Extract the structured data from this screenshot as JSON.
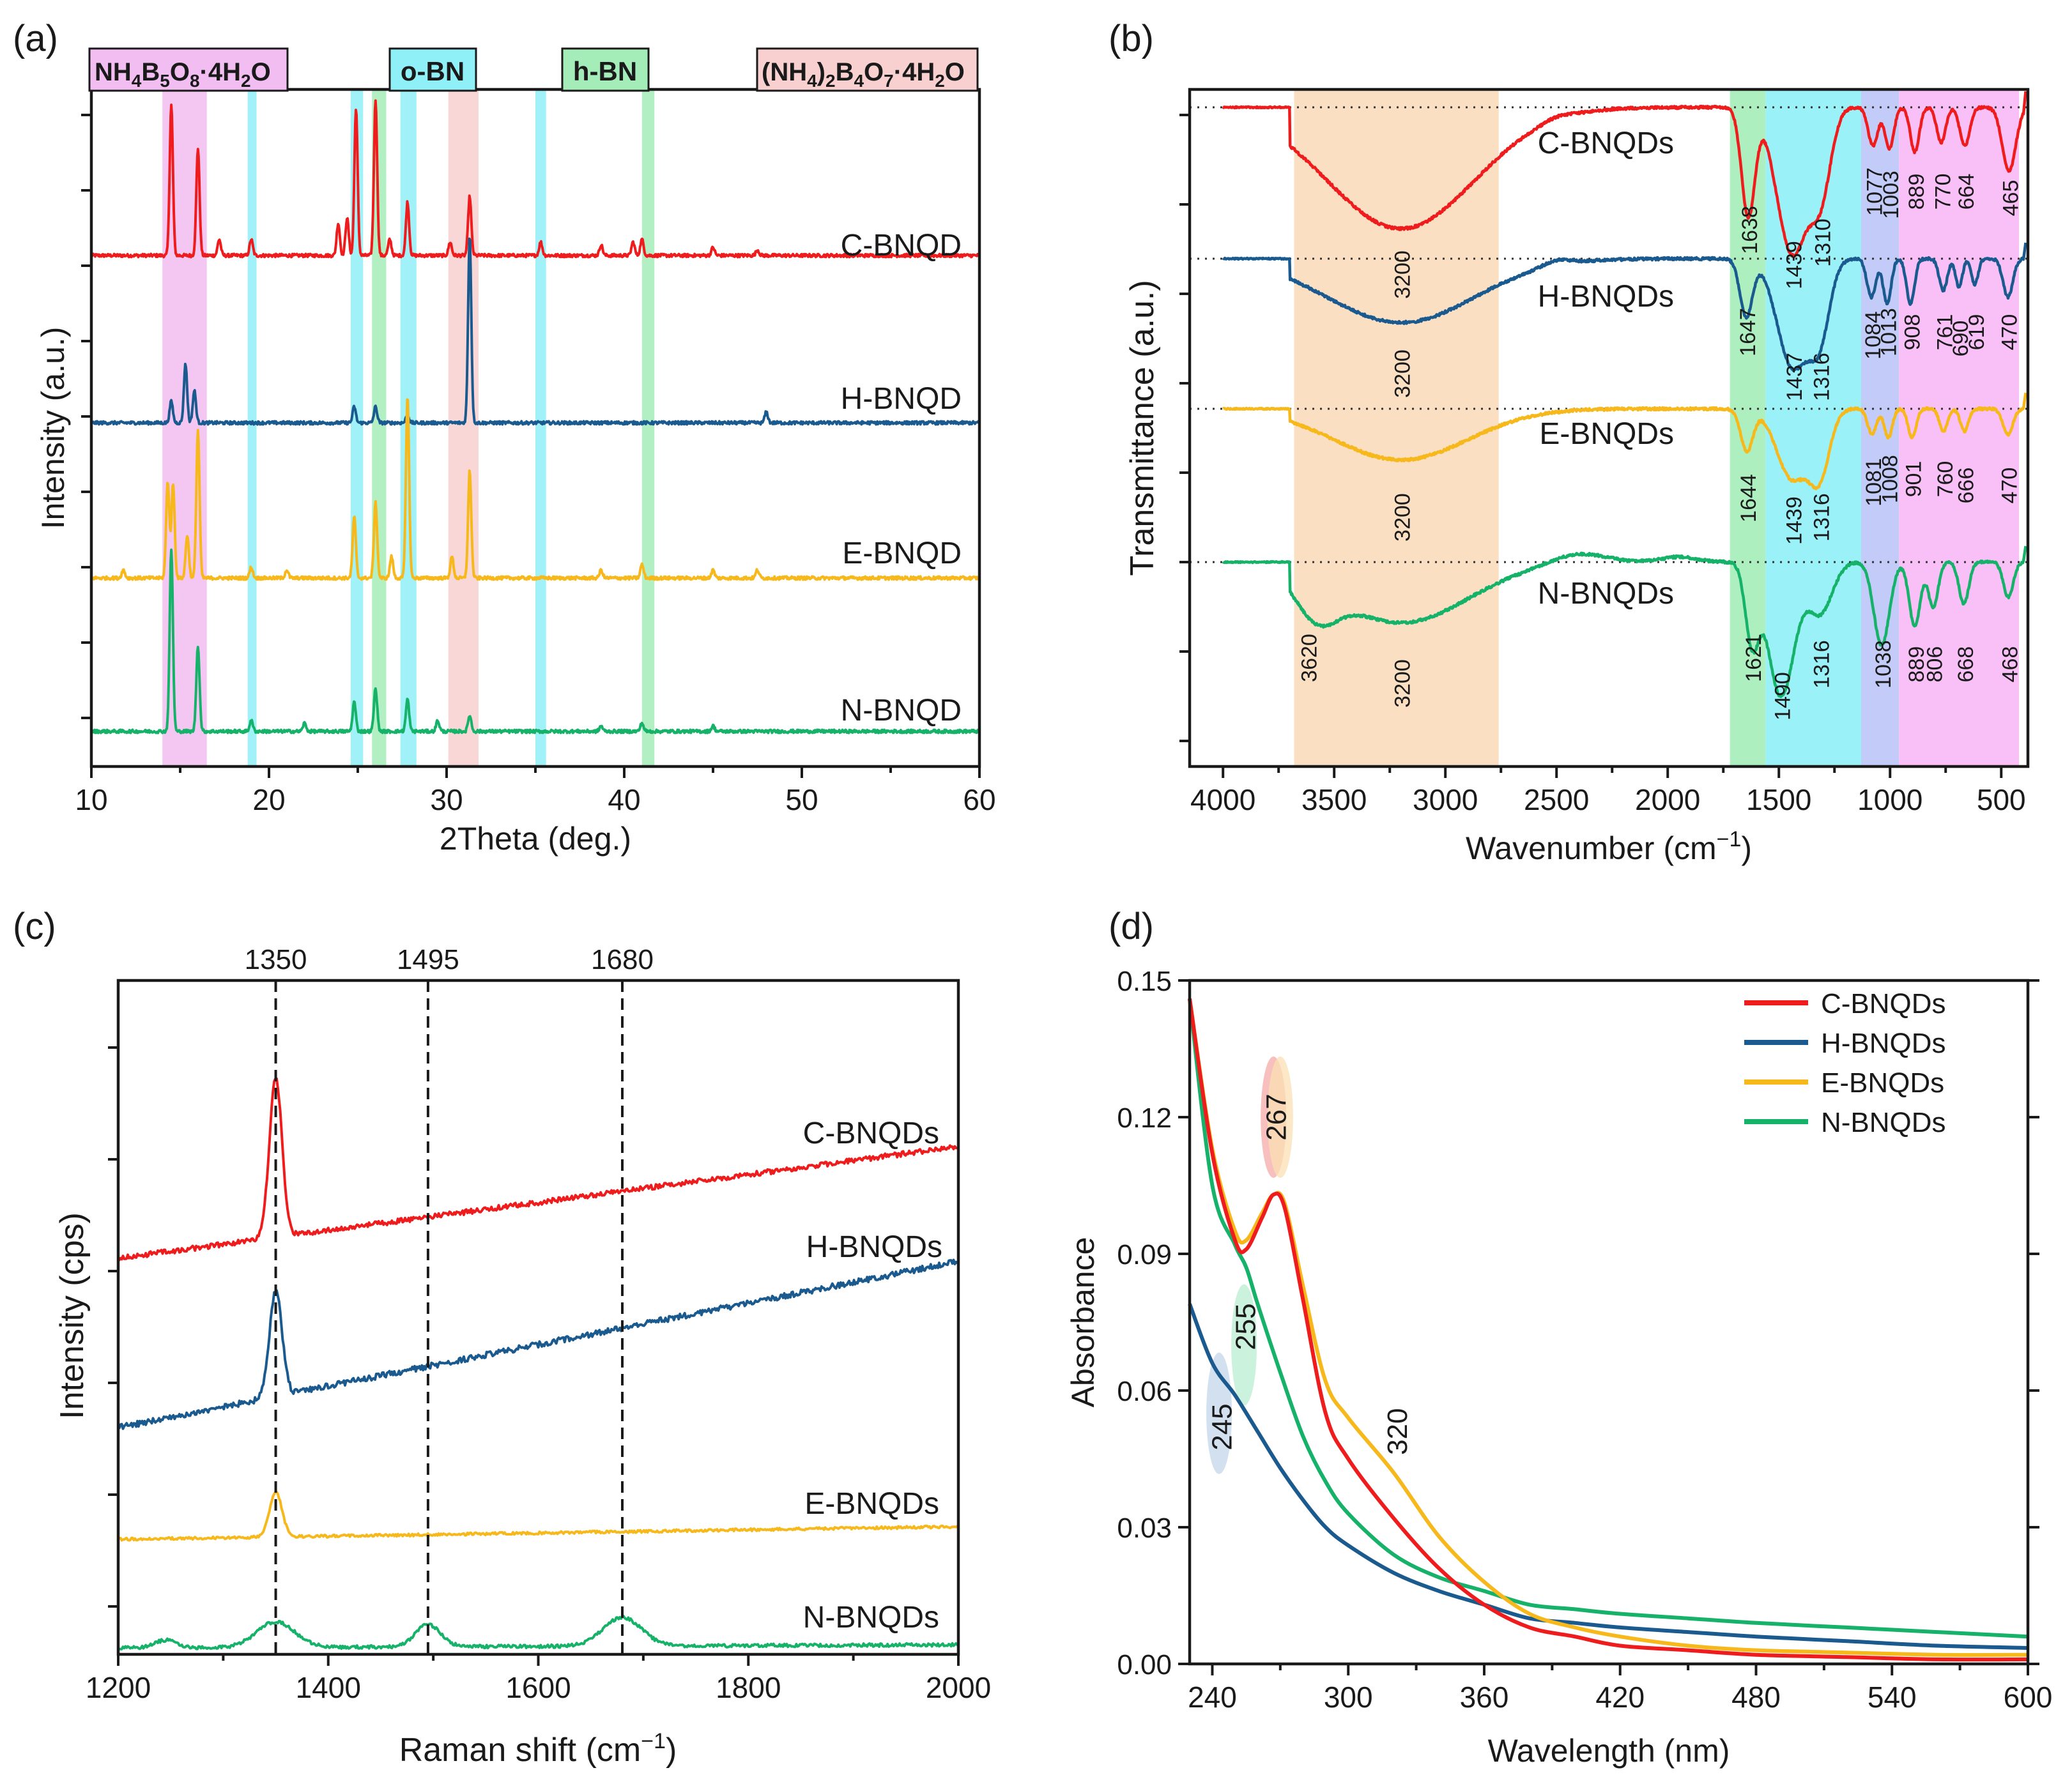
{
  "colors": {
    "red": "#ee1c1c",
    "blue": "#1b5a8e",
    "yellow": "#f6b81a",
    "green": "#17b26a",
    "axis": "#1a1a1a"
  },
  "chart_data": [
    {
      "panel_label": "(a)",
      "type": "line",
      "title": "",
      "xlabel": "2Theta (deg.)",
      "ylabel": "Intensity (a.u.)",
      "xlim": [
        10,
        60
      ],
      "xticks": [
        "10",
        "20",
        "30",
        "40",
        "50",
        "60"
      ],
      "series": [
        {
          "name": "C-BNQD",
          "color": "#ee1c1c",
          "baseline": 0.0,
          "peaks": [
            [
              14.5,
              0.56
            ],
            [
              16.0,
              0.4
            ],
            [
              17.2,
              0.06
            ],
            [
              19.0,
              0.06
            ],
            [
              23.9,
              0.12
            ],
            [
              24.4,
              0.14
            ],
            [
              24.9,
              0.55
            ],
            [
              26.0,
              0.58
            ],
            [
              26.8,
              0.06
            ],
            [
              27.8,
              0.2
            ],
            [
              30.2,
              0.05
            ],
            [
              31.3,
              0.22
            ],
            [
              35.3,
              0.05
            ],
            [
              38.7,
              0.04
            ],
            [
              40.5,
              0.05
            ],
            [
              41.0,
              0.06
            ],
            [
              45.0,
              0.03
            ],
            [
              47.5,
              0.02
            ]
          ]
        },
        {
          "name": "H-BNQD",
          "color": "#1b5a8e",
          "baseline": 0.0,
          "peaks": [
            [
              14.5,
              0.08
            ],
            [
              15.3,
              0.22
            ],
            [
              15.8,
              0.12
            ],
            [
              24.8,
              0.06
            ],
            [
              26.0,
              0.06
            ],
            [
              27.8,
              0.03
            ],
            [
              31.3,
              0.7
            ],
            [
              48.0,
              0.04
            ]
          ]
        },
        {
          "name": "E-BNQD",
          "color": "#f6b81a",
          "baseline": 0.0,
          "peaks": [
            [
              11.8,
              0.03
            ],
            [
              14.3,
              0.36
            ],
            [
              14.6,
              0.35
            ],
            [
              15.4,
              0.16
            ],
            [
              16.0,
              0.55
            ],
            [
              19.0,
              0.04
            ],
            [
              21.0,
              0.03
            ],
            [
              24.8,
              0.23
            ],
            [
              26.0,
              0.28
            ],
            [
              26.9,
              0.08
            ],
            [
              27.8,
              0.68
            ],
            [
              30.3,
              0.08
            ],
            [
              31.3,
              0.4
            ],
            [
              38.7,
              0.03
            ],
            [
              41.0,
              0.05
            ],
            [
              45.0,
              0.03
            ],
            [
              47.5,
              0.03
            ]
          ]
        },
        {
          "name": "N-BNQD",
          "color": "#17b26a",
          "baseline": 0.0,
          "peaks": [
            [
              14.5,
              0.68
            ],
            [
              16.0,
              0.32
            ],
            [
              19.0,
              0.04
            ],
            [
              22.0,
              0.03
            ],
            [
              24.8,
              0.11
            ],
            [
              26.0,
              0.16
            ],
            [
              27.8,
              0.12
            ],
            [
              29.5,
              0.04
            ],
            [
              31.3,
              0.06
            ],
            [
              38.7,
              0.02
            ],
            [
              41.0,
              0.03
            ],
            [
              45.0,
              0.02
            ]
          ]
        }
      ],
      "bands": [
        {
          "range": [
            14.0,
            16.5
          ],
          "color": "#f2bdf0"
        },
        {
          "range": [
            18.8,
            19.3
          ],
          "color": "#8ff0f7"
        },
        {
          "range": [
            24.6,
            25.3
          ],
          "color": "#8ff0f7"
        },
        {
          "range": [
            25.8,
            26.6
          ],
          "color": "#a5edb8"
        },
        {
          "range": [
            27.4,
            28.3
          ],
          "color": "#8ff0f7"
        },
        {
          "range": [
            30.1,
            31.8
          ],
          "color": "#f9d0d0"
        },
        {
          "range": [
            35.0,
            35.6
          ],
          "color": "#8ff0f7"
        },
        {
          "range": [
            41.0,
            41.7
          ],
          "color": "#a5edb8"
        }
      ],
      "phase_labels": [
        {
          "name": "NH4B5O8·4H2O",
          "base": "NH",
          "sub1": "4",
          "mid": "B",
          "sub2": "5",
          "mid2": "O",
          "sub3": "8",
          "tail": "·4H",
          "sub4": "2",
          "end": "O",
          "color": "#f2bdf0"
        },
        {
          "name": "o-BN",
          "color": "#8ff0f7"
        },
        {
          "name": "h-BN",
          "color": "#a5edb8"
        },
        {
          "name": "(NH4)2B4O7·4H2O",
          "color": "#f9d0d0"
        }
      ]
    },
    {
      "panel_label": "(b)",
      "type": "line",
      "xlabel": "Wavenumber (cm−1)",
      "ylabel": "Transmittance (a.u.)",
      "xlim": [
        4000,
        400
      ],
      "xticks": [
        "4000",
        "3500",
        "3000",
        "2500",
        "2000",
        "1500",
        "1000",
        "500"
      ],
      "bands": [
        {
          "range": [
            3680,
            2760
          ],
          "color": "#fbdcbd"
        },
        {
          "range": [
            1720,
            1560
          ],
          "color": "#a5edb8"
        },
        {
          "range": [
            1560,
            1130
          ],
          "color": "#8ff0f7"
        },
        {
          "range": [
            1130,
            960
          ],
          "color": "#bcc6f7"
        },
        {
          "range": [
            960,
            420
          ],
          "color": "#f7b9f5"
        }
      ],
      "series": [
        {
          "name": "C-BNQDs",
          "color": "#ee1c1c",
          "labels": [
            "3200",
            "1638",
            "1439",
            "1310",
            "1077",
            "1003",
            "889",
            "770",
            "664",
            "465"
          ]
        },
        {
          "name": "H-BNQDs",
          "color": "#1b5a8e",
          "labels": [
            "3200",
            "1647",
            "1437",
            "1316",
            "1084",
            "1013",
            "908",
            "761",
            "690",
            "619",
            "470"
          ]
        },
        {
          "name": "E-BNQDs",
          "color": "#f6b81a",
          "labels": [
            "3200",
            "1644",
            "1439",
            "1316",
            "1081",
            "1008",
            "901",
            "760",
            "666",
            "470"
          ]
        },
        {
          "name": "N-BNQDs",
          "color": "#17b26a",
          "labels": [
            "3620",
            "3200",
            "1621",
            "1490",
            "1316",
            "1038",
            "889",
            "806",
            "668",
            "468"
          ]
        }
      ]
    },
    {
      "panel_label": "(c)",
      "type": "line",
      "xlabel": "Raman shift (cm−1)",
      "ylabel": "Intensity (cps)",
      "xlim": [
        1200,
        2000
      ],
      "xticks": [
        "1200",
        "1400",
        "1600",
        "1800",
        "2000"
      ],
      "reference_lines": [
        "1350",
        "1495",
        "1680"
      ],
      "series": [
        {
          "name": "C-BNQDs",
          "color": "#ee1c1c"
        },
        {
          "name": "H-BNQDs",
          "color": "#1b5a8e"
        },
        {
          "name": "E-BNQDs",
          "color": "#f6b81a"
        },
        {
          "name": "N-BNQDs",
          "color": "#17b26a"
        }
      ]
    },
    {
      "panel_label": "(d)",
      "type": "line",
      "xlabel": "Wavelength (nm)",
      "ylabel": "Absorbance",
      "xlim": [
        230,
        600
      ],
      "ylim": [
        0,
        0.15
      ],
      "xticks": [
        "240",
        "300",
        "360",
        "420",
        "480",
        "540",
        "600"
      ],
      "yticks": [
        "0.00",
        "0.03",
        "0.06",
        "0.09",
        "0.12",
        "0.15"
      ],
      "legend_position": "top-right",
      "annotations": [
        "267",
        "255",
        "245",
        "320"
      ],
      "series": [
        {
          "name": "C-BNQDs",
          "color": "#ee1c1c",
          "x": [
            230,
            240,
            250,
            255,
            262,
            267,
            272,
            280,
            290,
            300,
            320,
            340,
            360,
            380,
            400,
            420,
            450,
            480,
            520,
            560,
            600
          ],
          "y": [
            0.146,
            0.112,
            0.093,
            0.091,
            0.098,
            0.103,
            0.1,
            0.08,
            0.055,
            0.045,
            0.032,
            0.021,
            0.013,
            0.008,
            0.006,
            0.004,
            0.003,
            0.002,
            0.0015,
            0.001,
            0.001
          ]
        },
        {
          "name": "H-BNQDs",
          "color": "#1b5a8e",
          "x": [
            230,
            240,
            250,
            260,
            270,
            280,
            290,
            300,
            320,
            340,
            360,
            380,
            400,
            420,
            450,
            480,
            520,
            560,
            600
          ],
          "y": [
            0.079,
            0.066,
            0.059,
            0.051,
            0.043,
            0.036,
            0.03,
            0.026,
            0.02,
            0.016,
            0.013,
            0.01,
            0.009,
            0.008,
            0.007,
            0.006,
            0.005,
            0.004,
            0.0035
          ]
        },
        {
          "name": "E-BNQDs",
          "color": "#f6b81a",
          "x": [
            230,
            240,
            250,
            255,
            262,
            267,
            272,
            280,
            290,
            300,
            320,
            340,
            360,
            380,
            400,
            420,
            450,
            480,
            520,
            560,
            600
          ],
          "y": [
            0.146,
            0.113,
            0.095,
            0.093,
            0.099,
            0.103,
            0.101,
            0.083,
            0.062,
            0.054,
            0.042,
            0.028,
            0.018,
            0.011,
            0.008,
            0.006,
            0.004,
            0.003,
            0.0025,
            0.002,
            0.002
          ]
        },
        {
          "name": "N-BNQDs",
          "color": "#17b26a",
          "x": [
            230,
            240,
            250,
            255,
            260,
            270,
            280,
            290,
            300,
            320,
            340,
            360,
            380,
            400,
            420,
            450,
            480,
            520,
            560,
            600
          ],
          "y": [
            0.146,
            0.105,
            0.092,
            0.087,
            0.079,
            0.064,
            0.05,
            0.04,
            0.033,
            0.024,
            0.019,
            0.016,
            0.013,
            0.012,
            0.011,
            0.01,
            0.009,
            0.008,
            0.007,
            0.006
          ]
        }
      ]
    }
  ]
}
